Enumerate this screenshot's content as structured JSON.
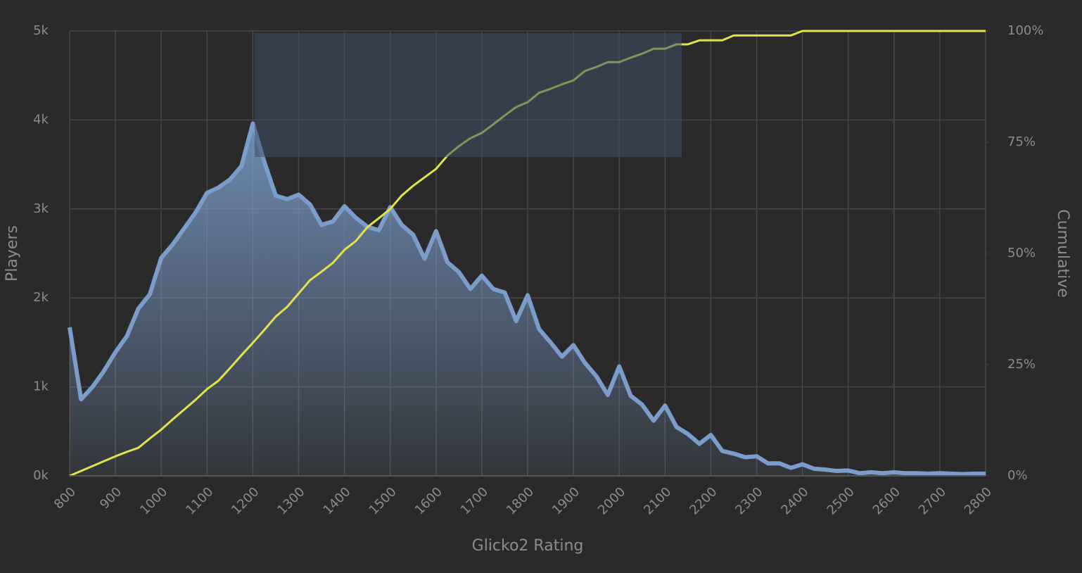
{
  "chart_data": {
    "type": "line",
    "x_label": "Glicko2 Rating",
    "y_label": "Players",
    "y2_label": "Cumulative",
    "x": [
      800,
      825,
      850,
      875,
      900,
      925,
      950,
      975,
      1000,
      1025,
      1050,
      1075,
      1100,
      1125,
      1150,
      1175,
      1200,
      1225,
      1250,
      1275,
      1300,
      1325,
      1350,
      1375,
      1400,
      1425,
      1450,
      1475,
      1500,
      1525,
      1550,
      1575,
      1600,
      1625,
      1650,
      1675,
      1700,
      1725,
      1750,
      1775,
      1800,
      1825,
      1850,
      1875,
      1900,
      1925,
      1950,
      1975,
      2000,
      2025,
      2050,
      2075,
      2100,
      2125,
      2150,
      2175,
      2200,
      2225,
      2250,
      2275,
      2300,
      2325,
      2350,
      2375,
      2400,
      2425,
      2450,
      2475,
      2500,
      2525,
      2550,
      2575,
      2600,
      2625,
      2650,
      2675,
      2700,
      2725,
      2750,
      2775,
      2800
    ],
    "series": [
      {
        "color": "#7b9dc9",
        "area": true,
        "values": [
          1670,
          860,
          1000,
          1180,
          1390,
          1570,
          1880,
          2040,
          2450,
          2600,
          2780,
          2960,
          3180,
          3240,
          3330,
          3480,
          3960,
          3530,
          3150,
          3110,
          3160,
          3050,
          2820,
          2860,
          3030,
          2900,
          2800,
          2760,
          3020,
          2820,
          2710,
          2440,
          2750,
          2400,
          2290,
          2100,
          2250,
          2100,
          2060,
          1740,
          2030,
          1650,
          1500,
          1340,
          1470,
          1270,
          1120,
          910,
          1230,
          900,
          800,
          620,
          790,
          550,
          470,
          360,
          460,
          280,
          250,
          210,
          220,
          140,
          140,
          90,
          130,
          80,
          70,
          55,
          60,
          30,
          40,
          30,
          40,
          30,
          30,
          25,
          30,
          25,
          20,
          25,
          25
        ]
      },
      {
        "color": "#e2e24a",
        "axis": "y2",
        "values": [
          0,
          1.1,
          2.2,
          3.3,
          4.4,
          5.4,
          6.3,
          8.4,
          10.4,
          12.7,
          14.9,
          17.1,
          19.5,
          21.4,
          24.2,
          27.1,
          29.9,
          32.8,
          35.8,
          38,
          41,
          44,
          45.9,
          47.9,
          50.8,
          52.8,
          55.9,
          57.9,
          60,
          63,
          65.2,
          67.1,
          69,
          72,
          74.1,
          75.9,
          77.1,
          79,
          81,
          82.9,
          84,
          86.1,
          87,
          88,
          88.9,
          91,
          91.9,
          93,
          93,
          94,
          94.9,
          96,
          96,
          97,
          97,
          97.9,
          97.9,
          97.9,
          99,
          99,
          99,
          99,
          99,
          99,
          100,
          100,
          100,
          100,
          100,
          100,
          100,
          100,
          100,
          100,
          100,
          100,
          100,
          100,
          100,
          100,
          100
        ]
      }
    ],
    "xlim": [
      800,
      2800
    ],
    "xticks": [
      800,
      900,
      1000,
      1100,
      1200,
      1300,
      1400,
      1500,
      1600,
      1700,
      1800,
      1900,
      2000,
      2100,
      2200,
      2300,
      2400,
      2500,
      2600,
      2700,
      2800
    ],
    "ylim": [
      0,
      5000
    ],
    "yticks": [
      {
        "value": 0,
        "label": "0k"
      },
      {
        "value": 1000,
        "label": "1k"
      },
      {
        "value": 2000,
        "label": "2k"
      },
      {
        "value": 3000,
        "label": "3k"
      },
      {
        "value": 4000,
        "label": "4k"
      },
      {
        "value": 5000,
        "label": "5k"
      }
    ],
    "y2lim": [
      0,
      100
    ],
    "y2ticks": [
      {
        "value": 0,
        "label": "0%"
      },
      {
        "value": 25,
        "label": "25%"
      },
      {
        "value": 50,
        "label": "50%"
      },
      {
        "value": 75,
        "label": "75%"
      },
      {
        "value": 100,
        "label": "100%"
      }
    ],
    "grid": true
  }
}
